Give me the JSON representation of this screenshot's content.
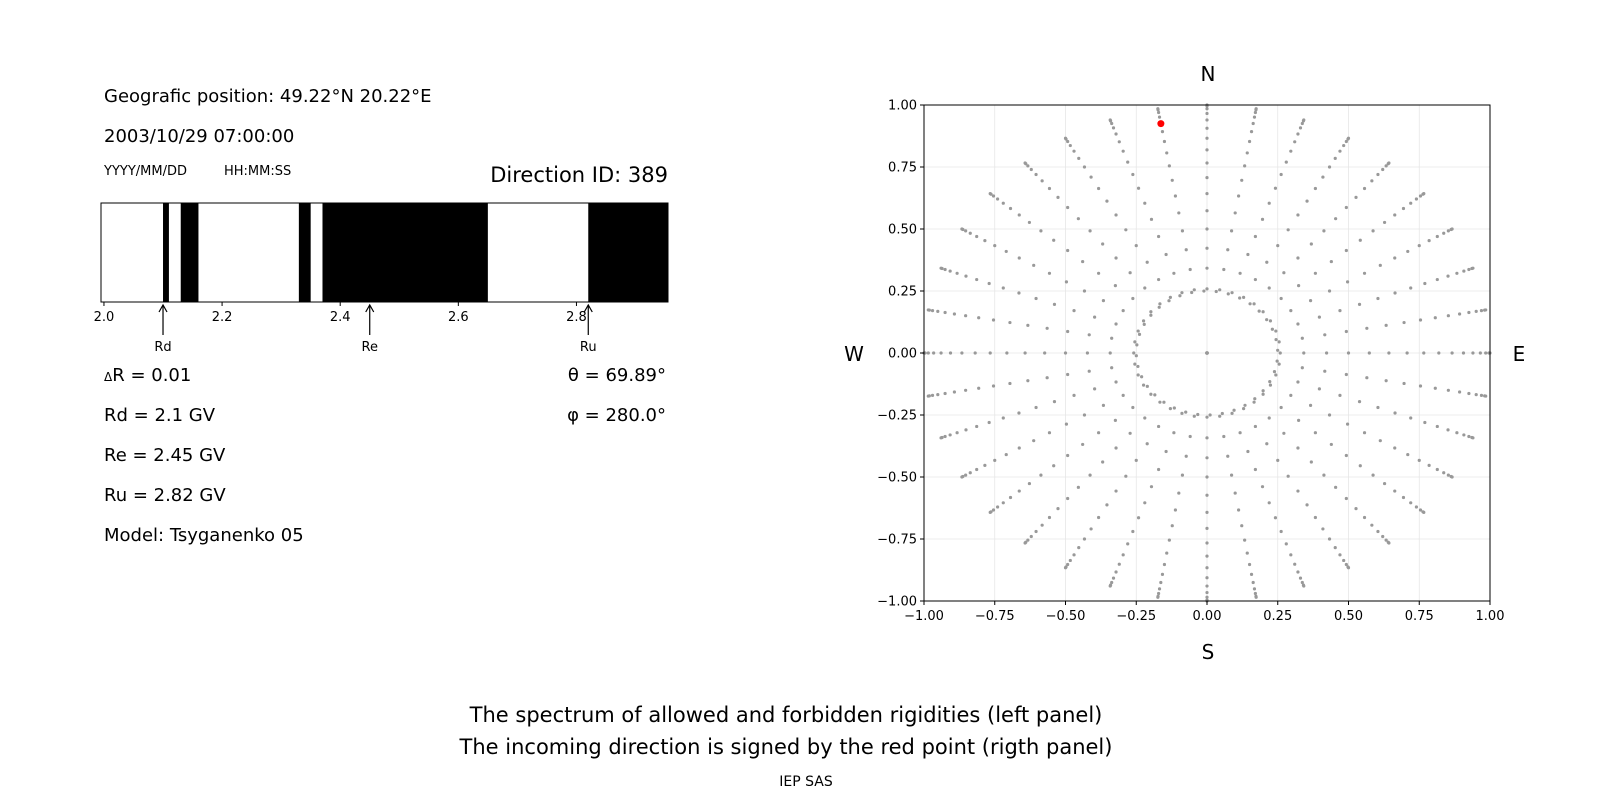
{
  "left_panel": {
    "position_text": "Geografic position: 49.22°N 20.22°E",
    "datetime_text": "2003/10/29 07:00:00",
    "date_format_label": "YYYY/MM/DD",
    "time_format_label": "HH:MM:SS",
    "direction_id_text": "Direction ID: 389",
    "delta_r_text": "R = 0.01",
    "delta_symbol": "Δ",
    "rd_text": "Rd = 2.1 GV",
    "re_text": "Re = 2.45 GV",
    "ru_text": "Ru = 2.82 GV",
    "model_text": "Model: Tsyganenko 05",
    "theta_text": "θ = 69.89°",
    "phi_text": "φ = 280.0°"
  },
  "spectrum_chart": {
    "type": "bar",
    "xlim": [
      1.995,
      2.955
    ],
    "x_ticks": [
      2.0,
      2.2,
      2.4,
      2.6,
      2.8
    ],
    "x_tick_labels": [
      "2.0",
      "2.2",
      "2.4",
      "2.6",
      "2.8"
    ],
    "forbidden_bands": [
      [
        2.1,
        2.11
      ],
      [
        2.13,
        2.16
      ],
      [
        2.33,
        2.35
      ],
      [
        2.37,
        2.65
      ],
      [
        2.82,
        2.955
      ]
    ],
    "markers": [
      {
        "label": "Rd",
        "value": 2.1
      },
      {
        "label": "Re",
        "value": 2.45
      },
      {
        "label": "Ru",
        "value": 2.82
      }
    ],
    "colors": {
      "allowed": "#ffffff",
      "forbidden": "#000000"
    }
  },
  "polar_chart": {
    "type": "scatter",
    "xlim": [
      -1.0,
      1.0
    ],
    "ylim": [
      -1.0,
      1.0
    ],
    "x_ticks": [
      -1.0,
      -0.75,
      -0.5,
      -0.25,
      0.0,
      0.25,
      0.5,
      0.75,
      1.0
    ],
    "x_tick_labels": [
      "−1.00",
      "−0.75",
      "−0.50",
      "−0.25",
      "0.00",
      "0.25",
      "0.50",
      "0.75",
      "1.00"
    ],
    "y_ticks": [
      1.0,
      0.75,
      0.5,
      0.25,
      0.0,
      -0.25,
      -0.5,
      -0.75,
      -1.0
    ],
    "y_tick_labels": [
      "1.00",
      "0.75",
      "0.50",
      "0.25",
      "0.00",
      "−0.25",
      "−0.50",
      "−0.75",
      "−1.00"
    ],
    "grid": true,
    "compass": {
      "north": "N",
      "south": "S",
      "west": "W",
      "east": "E"
    },
    "grid_points": {
      "azimuth_step_deg": 10,
      "theta_start_deg": 0,
      "theta_step_deg": 5,
      "theta_end_deg": 90,
      "inner_ring_radius": 0.25,
      "inner_ring_azimuth_step_deg": 5,
      "color": "#999999"
    },
    "highlight_point": {
      "theta_deg": 69.89,
      "phi_deg": 280.0,
      "x": -0.163,
      "y": 0.925,
      "color": "#ff0000"
    }
  },
  "footer": {
    "caption_line1": "The spectrum of allowed and forbidden rigidities (left panel)",
    "caption_line2": "The incoming direction is signed by the red point (rigth panel)",
    "credit": "IEP SAS"
  }
}
